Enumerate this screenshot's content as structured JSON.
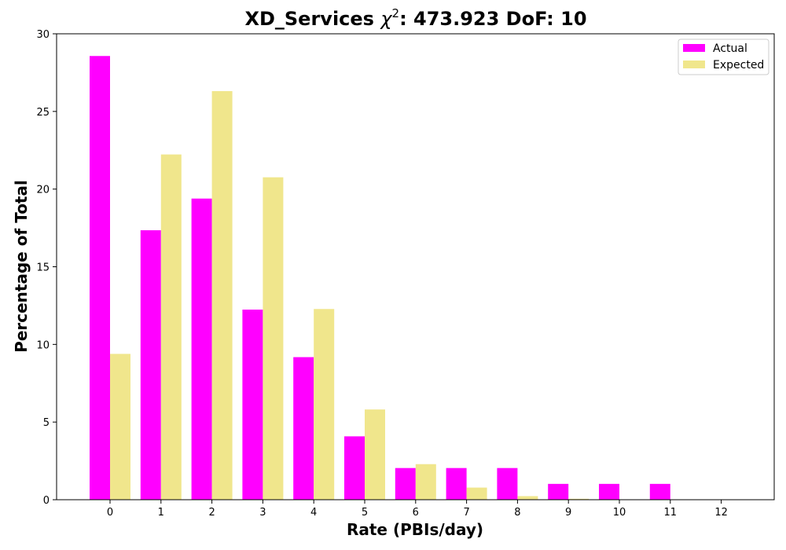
{
  "chart_data": {
    "type": "bar",
    "title": "XD_Services χ²: 473.923 DoF: 10",
    "title_parts": {
      "prefix": "XD_Services ",
      "chi": "χ",
      "sup": "2",
      "suffix": ": 473.923 DoF: 10"
    },
    "xlabel": "Rate (PBIs/day)",
    "ylabel": "Percentage of Total",
    "categories": [
      "0",
      "1",
      "2",
      "3",
      "4",
      "5",
      "6",
      "7",
      "8",
      "9",
      "10",
      "11",
      "12"
    ],
    "ylim": [
      0,
      30
    ],
    "yticks": [
      "0",
      "5",
      "10",
      "15",
      "20",
      "25",
      "30"
    ],
    "grid": false,
    "legend_position": "top-right",
    "series": [
      {
        "name": "Actual",
        "color": "#ff00ff",
        "values": [
          28.57,
          17.35,
          19.39,
          12.24,
          9.18,
          4.08,
          2.04,
          2.04,
          2.04,
          1.02,
          1.02,
          1.02,
          0
        ]
      },
      {
        "name": "Expected",
        "color": "#f0e68c",
        "values": [
          9.39,
          22.23,
          26.31,
          20.76,
          12.28,
          5.81,
          2.29,
          0.78,
          0.23,
          0.06,
          0.01,
          0.0,
          0.0
        ]
      }
    ]
  }
}
